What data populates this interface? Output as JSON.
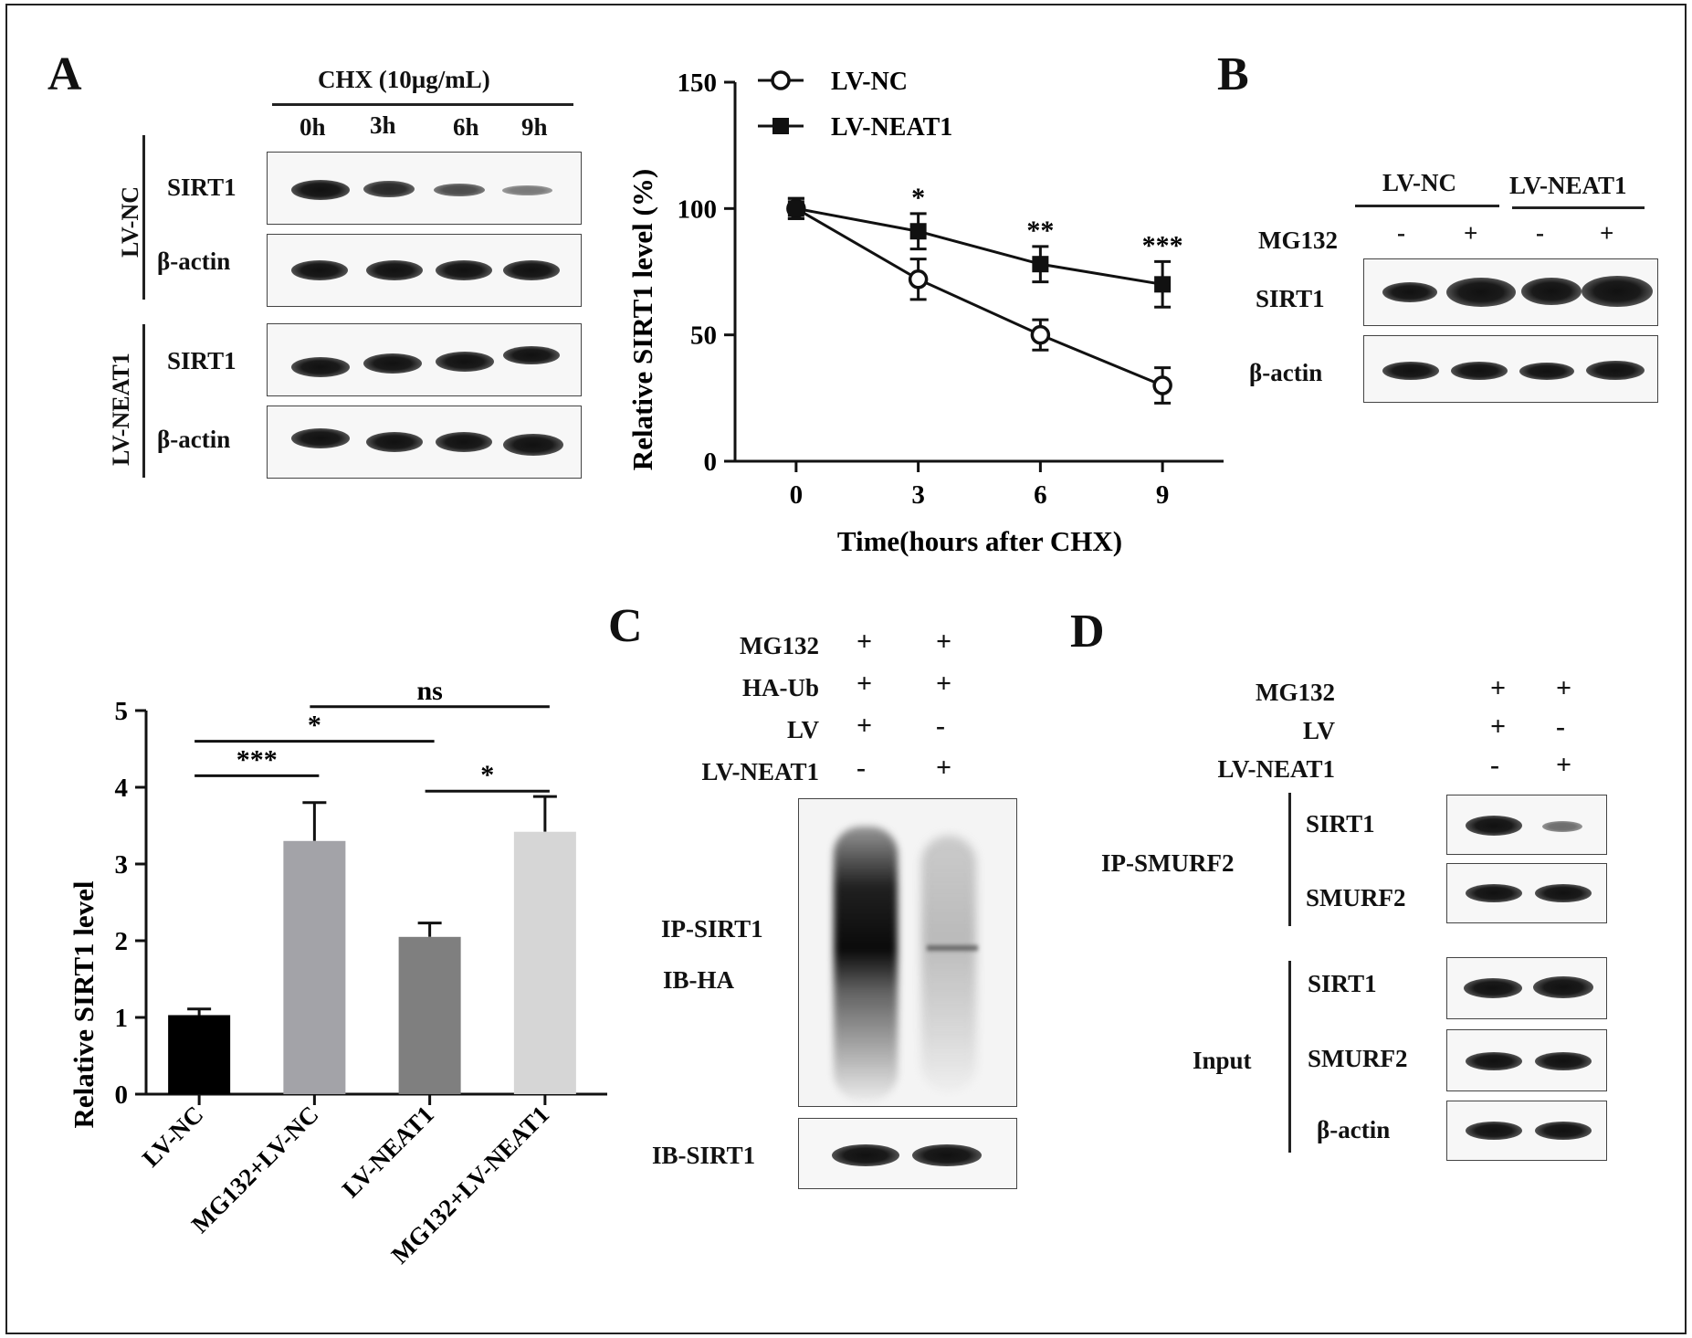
{
  "panels": {
    "A": "A",
    "B": "B",
    "C": "C",
    "D": "D"
  },
  "panelA": {
    "treatment": "CHX (10µg/mL)",
    "timepoints": [
      "0h",
      "3h",
      "6h",
      "9h"
    ],
    "groups": [
      "LV-NC",
      "LV-NEAT1"
    ],
    "rows": [
      "SIRT1",
      "β-actin",
      "SIRT1",
      "β-actin"
    ]
  },
  "panelB": {
    "headers": [
      "LV-NC",
      "LV-NEAT1"
    ],
    "mg132_label": "MG132",
    "mg132_signs": [
      "-",
      "+",
      "-",
      "+"
    ],
    "rows": [
      "SIRT1",
      "β-actin"
    ]
  },
  "panelC": {
    "conditions": [
      {
        "label": "MG132",
        "signs": [
          "+",
          "+"
        ]
      },
      {
        "label": "HA-Ub",
        "signs": [
          "+",
          "+"
        ]
      },
      {
        "label": "LV",
        "signs": [
          "+",
          "-"
        ]
      },
      {
        "label": "LV-NEAT1",
        "signs": [
          "-",
          "+"
        ]
      }
    ],
    "ip_label": "IP-SIRT1",
    "ib_label": "IB-HA",
    "ib2_label": "IB-SIRT1"
  },
  "panelD": {
    "conditions": [
      {
        "label": "MG132",
        "signs": [
          "+",
          "+"
        ]
      },
      {
        "label": "LV",
        "signs": [
          "+",
          "-"
        ]
      },
      {
        "label": "LV-NEAT1",
        "signs": [
          "-",
          "+"
        ]
      }
    ],
    "ip_group": "IP-SMURF2",
    "ip_rows": [
      "SIRT1",
      "SMURF2"
    ],
    "input_group": "Input",
    "input_rows": [
      "SIRT1",
      "SMURF2",
      "β-actin"
    ]
  },
  "chart_data": [
    {
      "type": "line",
      "ylabel": "Relative SIRT1 level (%)",
      "xlabel": "Time(hours after CHX)",
      "x": [
        0,
        3,
        6,
        9
      ],
      "xticks": [
        "0",
        "3",
        "6",
        "9"
      ],
      "yticks": [
        "0",
        "50",
        "100",
        "150"
      ],
      "ylim": [
        0,
        150
      ],
      "xlim": [
        -1.5,
        10.5
      ],
      "series": [
        {
          "name": "LV-NC",
          "values": [
            100,
            72,
            50,
            30
          ],
          "errors": [
            4,
            8,
            6,
            7
          ],
          "marker": "open-circle"
        },
        {
          "name": "LV-NEAT1",
          "values": [
            100,
            91,
            78,
            70
          ],
          "errors": [
            4,
            7,
            7,
            9
          ],
          "marker": "filled-square"
        }
      ],
      "annotations": [
        {
          "x": 3,
          "text": "*"
        },
        {
          "x": 6,
          "text": "**"
        },
        {
          "x": 9,
          "text": "***"
        }
      ],
      "legend": "top-left"
    },
    {
      "type": "bar",
      "ylabel": "Relative SIRT1 level",
      "categories": [
        "LV-NC",
        "MG132+LV-NC",
        "LV-NEAT1",
        "MG132+LV-NEAT1"
      ],
      "values": [
        1.03,
        3.3,
        2.05,
        3.42
      ],
      "errors": [
        0.08,
        0.5,
        0.18,
        0.46
      ],
      "colors": [
        "#000000",
        "#a3a3a8",
        "#7f7f7f",
        "#d6d6d6"
      ],
      "yticks": [
        "0",
        "1",
        "2",
        "3",
        "4",
        "5"
      ],
      "ylim": [
        0,
        5
      ],
      "significance": [
        {
          "from": 0,
          "to": 1,
          "text": "***"
        },
        {
          "from": 0,
          "to": 2,
          "text": "*"
        },
        {
          "from": 1,
          "to": 3,
          "text": "ns"
        },
        {
          "from": 2,
          "to": 3,
          "text": "*"
        }
      ]
    }
  ]
}
